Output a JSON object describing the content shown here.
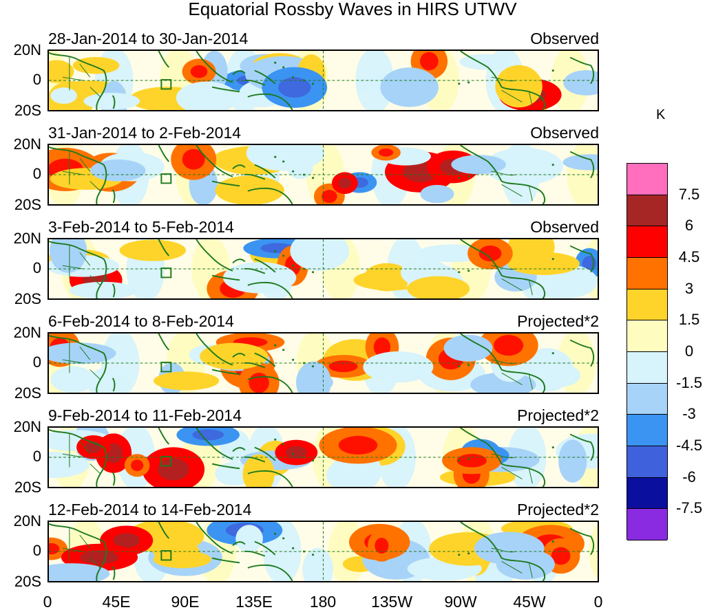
{
  "title": "Equatorial Rossby Waves in HIRS UTWV",
  "lat_labels": [
    "20N",
    "0",
    "20S"
  ],
  "panels": [
    {
      "date_range": "28-Jan-2014 to 30-Jan-2014",
      "label": "Observed"
    },
    {
      "date_range": "31-Jan-2014 to 2-Feb-2014",
      "label": "Observed"
    },
    {
      "date_range": "3-Feb-2014 to 5-Feb-2014",
      "label": "Observed"
    },
    {
      "date_range": "6-Feb-2014 to 8-Feb-2014",
      "label": "Projected*2"
    },
    {
      "date_range": "9-Feb-2014 to 11-Feb-2014",
      "label": "Projected*2"
    },
    {
      "date_range": "12-Feb-2014 to 14-Feb-2014",
      "label": "Projected*2"
    }
  ],
  "lon_labels": [
    "0",
    "45E",
    "90E",
    "135E",
    "180",
    "135W",
    "90W",
    "45W",
    "0"
  ],
  "colorbar": {
    "units": "K",
    "labels": [
      "7.5",
      "6",
      "4.5",
      "3",
      "1.5",
      "0",
      "-1.5",
      "-3",
      "-4.5",
      "-6",
      "-7.5"
    ],
    "colors": [
      "#ff6fbd",
      "#a62626",
      "#ff0000",
      "#ff7200",
      "#ffd42a",
      "#fffcc0",
      "#d7f3fb",
      "#a7d3f8",
      "#3b94f1",
      "#3f62dc",
      "#0b0f9e",
      "#8a2be2"
    ]
  },
  "colors": {
    "land": "#1e7a1e",
    "equator_line": "#1e7a1e"
  }
}
